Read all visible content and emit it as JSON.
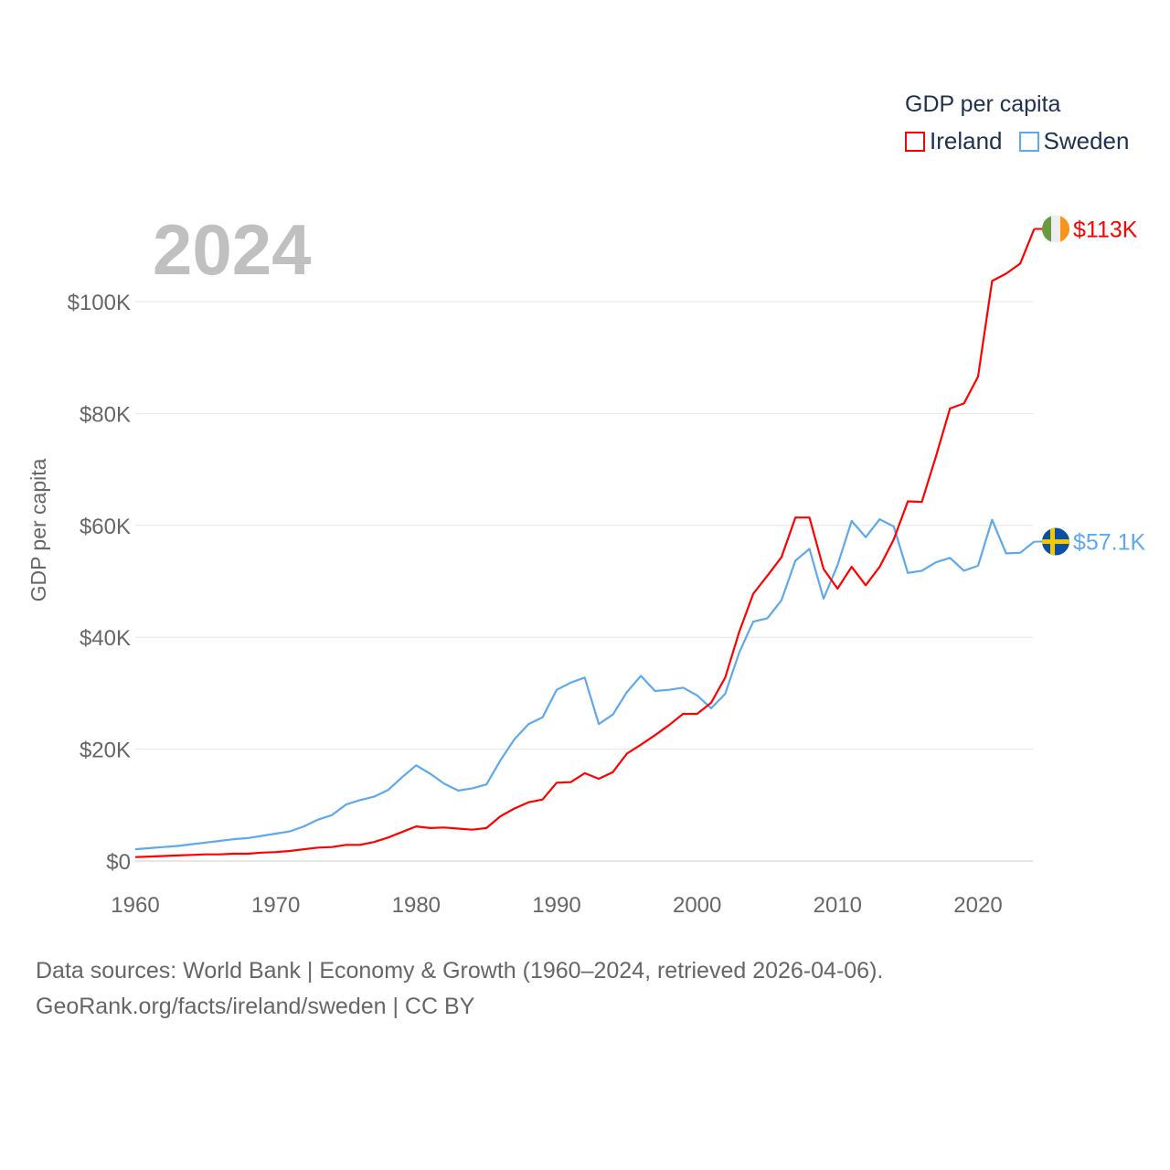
{
  "chart_data": {
    "type": "line",
    "title": "",
    "year_label": "2024",
    "xlabel": "",
    "ylabel": "GDP per capita",
    "xlim": [
      1960,
      2024
    ],
    "ylim": [
      0,
      113
    ],
    "grid": true,
    "x_ticks": [
      1960,
      1970,
      1980,
      1990,
      2000,
      2010,
      2020
    ],
    "x_tick_labels": [
      "1960",
      "1970",
      "1980",
      "1990",
      "2000",
      "2010",
      "2020"
    ],
    "y_ticks": [
      0,
      20,
      40,
      60,
      80,
      100
    ],
    "y_tick_labels": [
      "$0",
      "$20K",
      "$40K",
      "$60K",
      "$80K",
      "$100K"
    ],
    "legend": {
      "title": "GDP per capita",
      "placement": "top-right"
    },
    "x": [
      1960,
      1961,
      1962,
      1963,
      1964,
      1965,
      1966,
      1967,
      1968,
      1969,
      1970,
      1971,
      1972,
      1973,
      1974,
      1975,
      1976,
      1977,
      1978,
      1979,
      1980,
      1981,
      1982,
      1983,
      1984,
      1985,
      1986,
      1987,
      1988,
      1989,
      1990,
      1991,
      1992,
      1993,
      1994,
      1995,
      1996,
      1997,
      1998,
      1999,
      2000,
      2001,
      2002,
      2003,
      2004,
      2005,
      2006,
      2007,
      2008,
      2009,
      2010,
      2011,
      2012,
      2013,
      2014,
      2015,
      2016,
      2017,
      2018,
      2019,
      2020,
      2021,
      2022,
      2023,
      2024
    ],
    "series": [
      {
        "name": "Ireland",
        "color": "#ff0000",
        "end_label": "$113K",
        "flag": "ireland-flag",
        "values": [
          0.7,
          0.8,
          0.9,
          1.0,
          1.1,
          1.2,
          1.2,
          1.3,
          1.3,
          1.5,
          1.6,
          1.8,
          2.1,
          2.4,
          2.5,
          2.9,
          2.9,
          3.4,
          4.2,
          5.2,
          6.2,
          5.9,
          6.0,
          5.8,
          5.6,
          5.9,
          8.0,
          9.4,
          10.5,
          11.0,
          14.0,
          14.1,
          15.7,
          14.7,
          15.9,
          19.2,
          20.8,
          22.5,
          24.3,
          26.3,
          26.3,
          28.3,
          32.8,
          41.0,
          47.8,
          51.0,
          54.3,
          61.4,
          61.4,
          52.2,
          48.7,
          52.6,
          49.3,
          52.6,
          57.5,
          64.3,
          64.2,
          72.3,
          80.9,
          81.8,
          86.6,
          103.7,
          105.0,
          106.8,
          113.0
        ]
      },
      {
        "name": "Sweden",
        "color": "#5ea8ec",
        "end_label": "$57.1K",
        "flag": "sweden-flag",
        "values": [
          2.1,
          2.3,
          2.5,
          2.7,
          3.0,
          3.3,
          3.6,
          3.9,
          4.1,
          4.5,
          4.9,
          5.3,
          6.2,
          7.4,
          8.2,
          10.1,
          10.9,
          11.5,
          12.7,
          15.0,
          17.1,
          15.6,
          13.8,
          12.6,
          13.0,
          13.7,
          18.0,
          21.8,
          24.5,
          25.7,
          30.6,
          31.9,
          32.8,
          24.5,
          26.2,
          30.2,
          33.1,
          30.4,
          30.6,
          31.0,
          29.6,
          27.3,
          29.9,
          37.3,
          42.8,
          43.4,
          46.6,
          53.7,
          55.8,
          46.9,
          52.9,
          60.8,
          57.9,
          61.1,
          59.8,
          51.5,
          51.9,
          53.4,
          54.2,
          51.9,
          52.8,
          61.0,
          55.0,
          55.1,
          57.1
        ]
      }
    ]
  },
  "footer": {
    "line1": "Data sources: World Bank | Economy & Growth (1960–2024, retrieved 2026-04-06).",
    "line2": "GeoRank.org/facts/ireland/sweden | CC BY"
  }
}
